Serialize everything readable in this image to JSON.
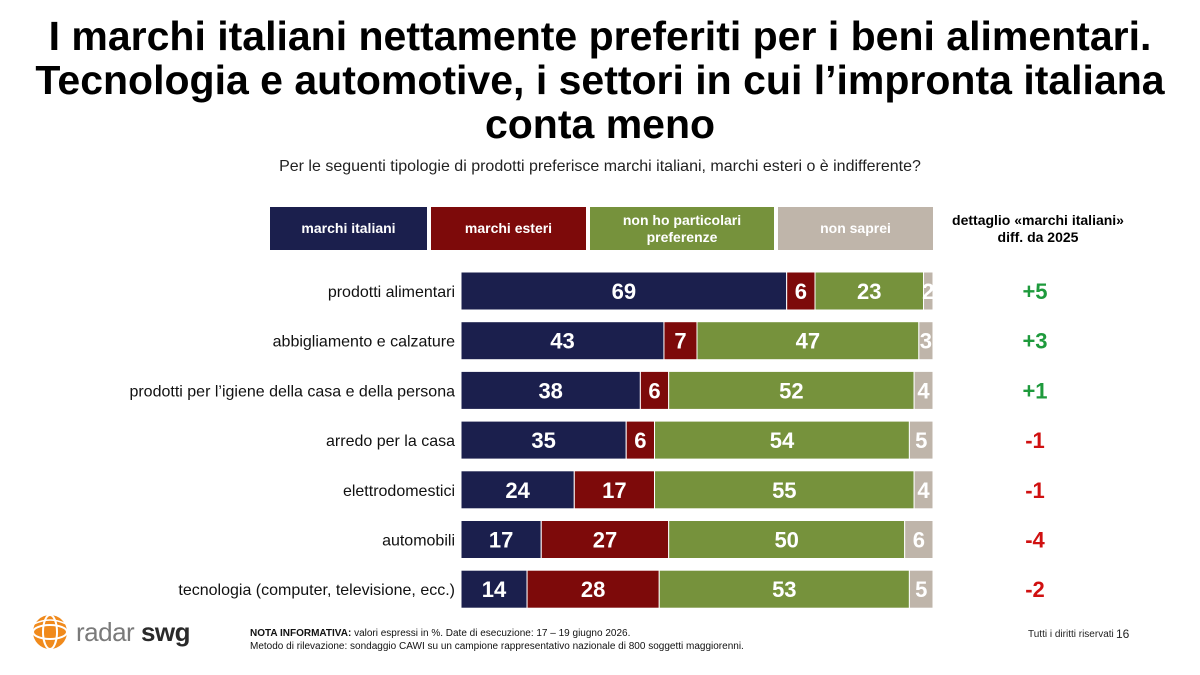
{
  "title": "I marchi italiani nettamente preferiti per i beni alimentari. Tecnologia e automotive, i settori in cui l’impronta italiana conta meno",
  "subtitle": "Per le seguenti tipologie di prodotti preferisce marchi italiani, marchi esteri o è indifferente?",
  "legend": [
    {
      "label": "marchi italiani",
      "color": "#1b1f4d"
    },
    {
      "label": "marchi esteri",
      "color": "#7d0a0a"
    },
    {
      "label": "non ho particolari preferenze",
      "color": "#76923c"
    },
    {
      "label": "non saprei",
      "color": "#bfb5aa"
    }
  ],
  "diff_header": "dettaglio «marchi italiani» diff. da 2025",
  "diff_colors": {
    "positive": "#1e9a3c",
    "negative": "#d01010"
  },
  "chart_data": {
    "type": "bar",
    "orientation": "horizontal",
    "stacked": true,
    "categories": [
      "prodotti alimentari",
      "abbigliamento e calzature",
      "prodotti per l’igiene della casa e della persona",
      "arredo per la casa",
      "elettrodomestici",
      "automobili",
      "tecnologia (computer, televisione, ecc.)"
    ],
    "series": [
      {
        "name": "marchi italiani",
        "values": [
          69,
          43,
          38,
          35,
          24,
          17,
          14
        ]
      },
      {
        "name": "marchi esteri",
        "values": [
          6,
          7,
          6,
          6,
          17,
          27,
          28
        ]
      },
      {
        "name": "non ho particolari preferenze",
        "values": [
          23,
          47,
          52,
          54,
          55,
          50,
          53
        ]
      },
      {
        "name": "non saprei",
        "values": [
          2,
          3,
          4,
          5,
          4,
          6,
          5
        ]
      }
    ],
    "diff": [
      "+5",
      "+3",
      "+1",
      "-1",
      "-1",
      "-4",
      "-2"
    ],
    "xlim": [
      0,
      100
    ],
    "unit": "%"
  },
  "footer": {
    "note_label": "NOTA INFORMATIVA:",
    "note_text": "valori espressi in %. Date di esecuzione: 17 – 19 giugno 2026.",
    "method": "Metodo di rilevazione: sondaggio CAWI su un campione rappresentativo nazionale di 800 soggetti maggiorenni.",
    "rights": "Tutti i diritti riservati",
    "page": "16"
  },
  "logo": {
    "part1": "radar",
    "part2": "swg",
    "icon": "orange-globe-icon"
  }
}
